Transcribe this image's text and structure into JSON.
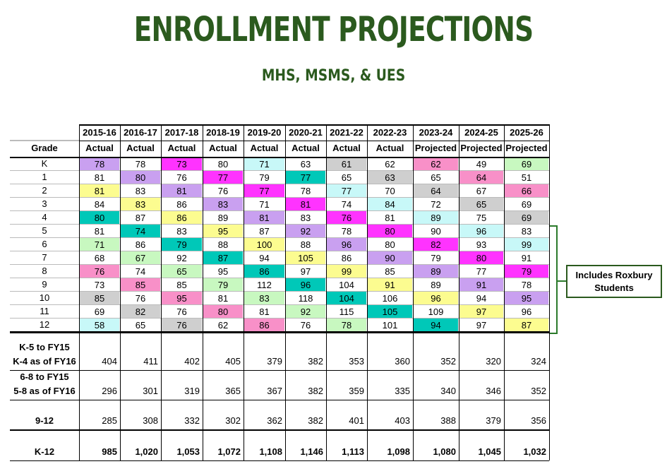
{
  "title": "ENROLLMENT PROJECTIONS",
  "subtitle": "MHS, MSMS, & UES",
  "callout": "Includes Roxbury Students",
  "years": [
    "2015-16",
    "2016-17",
    "2017-18",
    "2018-19",
    "2019-20",
    "2020-21",
    "2021-22",
    "2022-23",
    "2023-24",
    "2024-25",
    "2025-26"
  ],
  "types": [
    "Actual",
    "Actual",
    "Actual",
    "Actual",
    "Actual",
    "Actual",
    "Actual",
    "Actual",
    "Projected",
    "Projected",
    "Projected"
  ],
  "grade_header": "Grade",
  "colors": {
    "purple": "#c9a0f0",
    "magenta": "#ff33ff",
    "gray": "#cfcfcf",
    "cyan": "#c8f8f8",
    "teal": "#00c8b8",
    "green": "#c8f8c0",
    "yellow": "#fcfc90",
    "pink": "#f890c8",
    "white": "#ffffff",
    "title": "#2b5a1e"
  },
  "rows": [
    {
      "grade": "K",
      "values": [
        "78",
        "78",
        "73",
        "80",
        "71",
        "63",
        "61",
        "62",
        "62",
        "49",
        "69"
      ],
      "colors": [
        "purple",
        "white",
        "magenta",
        "white",
        "cyan",
        "white",
        "gray",
        "white",
        "pink",
        "white",
        "green"
      ]
    },
    {
      "grade": "1",
      "values": [
        "81",
        "80",
        "76",
        "77",
        "79",
        "77",
        "65",
        "63",
        "65",
        "64",
        "51"
      ],
      "colors": [
        "white",
        "purple",
        "white",
        "magenta",
        "white",
        "teal",
        "white",
        "gray",
        "white",
        "pink",
        "white"
      ]
    },
    {
      "grade": "2",
      "values": [
        "81",
        "83",
        "81",
        "76",
        "77",
        "78",
        "77",
        "70",
        "64",
        "67",
        "66"
      ],
      "colors": [
        "yellow",
        "white",
        "purple",
        "white",
        "magenta",
        "white",
        "cyan",
        "white",
        "gray",
        "white",
        "pink"
      ]
    },
    {
      "grade": "3",
      "values": [
        "84",
        "83",
        "86",
        "83",
        "71",
        "81",
        "74",
        "84",
        "72",
        "65",
        "69"
      ],
      "colors": [
        "white",
        "yellow",
        "white",
        "purple",
        "white",
        "magenta",
        "white",
        "cyan",
        "white",
        "gray",
        "white"
      ]
    },
    {
      "grade": "4",
      "values": [
        "80",
        "87",
        "86",
        "89",
        "81",
        "83",
        "76",
        "81",
        "89",
        "75",
        "69"
      ],
      "colors": [
        "teal",
        "white",
        "yellow",
        "white",
        "purple",
        "white",
        "magenta",
        "white",
        "cyan",
        "white",
        "gray"
      ]
    },
    {
      "grade": "5",
      "values": [
        "81",
        "74",
        "83",
        "95",
        "87",
        "92",
        "78",
        "80",
        "90",
        "96",
        "83"
      ],
      "colors": [
        "white",
        "teal",
        "white",
        "yellow",
        "white",
        "purple",
        "white",
        "magenta",
        "white",
        "cyan",
        "white"
      ]
    },
    {
      "grade": "6",
      "values": [
        "71",
        "86",
        "79",
        "88",
        "100",
        "88",
        "96",
        "80",
        "82",
        "93",
        "99"
      ],
      "colors": [
        "green",
        "white",
        "teal",
        "white",
        "yellow",
        "white",
        "purple",
        "white",
        "magenta",
        "white",
        "cyan"
      ]
    },
    {
      "grade": "7",
      "values": [
        "68",
        "67",
        "92",
        "87",
        "94",
        "105",
        "86",
        "90",
        "79",
        "80",
        "91"
      ],
      "colors": [
        "white",
        "green",
        "white",
        "teal",
        "white",
        "yellow",
        "white",
        "purple",
        "white",
        "magenta",
        "white"
      ]
    },
    {
      "grade": "8",
      "values": [
        "76",
        "74",
        "65",
        "95",
        "86",
        "97",
        "99",
        "85",
        "89",
        "77",
        "79"
      ],
      "colors": [
        "pink",
        "white",
        "green",
        "white",
        "teal",
        "white",
        "yellow",
        "white",
        "purple",
        "white",
        "magenta"
      ]
    },
    {
      "grade": "9",
      "values": [
        "73",
        "85",
        "85",
        "79",
        "112",
        "96",
        "104",
        "91",
        "89",
        "91",
        "78"
      ],
      "colors": [
        "white",
        "pink",
        "white",
        "green",
        "white",
        "teal",
        "white",
        "yellow",
        "white",
        "purple",
        "white"
      ]
    },
    {
      "grade": "10",
      "values": [
        "85",
        "76",
        "95",
        "81",
        "83",
        "118",
        "104",
        "106",
        "96",
        "94",
        "95"
      ],
      "colors": [
        "gray",
        "white",
        "pink",
        "white",
        "green",
        "white",
        "teal",
        "white",
        "yellow",
        "white",
        "purple"
      ]
    },
    {
      "grade": "11",
      "values": [
        "69",
        "82",
        "76",
        "80",
        "81",
        "92",
        "115",
        "105",
        "109",
        "97",
        "96"
      ],
      "colors": [
        "white",
        "gray",
        "white",
        "pink",
        "white",
        "green",
        "white",
        "teal",
        "white",
        "yellow",
        "white"
      ]
    },
    {
      "grade": "12",
      "values": [
        "58",
        "65",
        "76",
        "62",
        "86",
        "76",
        "78",
        "101",
        "94",
        "97",
        "87"
      ],
      "colors": [
        "cyan",
        "white",
        "gray",
        "white",
        "pink",
        "white",
        "green",
        "white",
        "teal",
        "white",
        "yellow"
      ]
    }
  ],
  "summary": [
    {
      "label1": "K-5 to FY15",
      "label2": "K-4 as of FY16",
      "values": [
        "404",
        "411",
        "402",
        "405",
        "379",
        "382",
        "353",
        "360",
        "352",
        "320",
        "324"
      ]
    },
    {
      "label1": "6-8 to FY15",
      "label2": "5-8 as of FY16",
      "values": [
        "296",
        "301",
        "319",
        "365",
        "367",
        "382",
        "359",
        "335",
        "340",
        "346",
        "352"
      ]
    },
    {
      "label1": "",
      "label2": "9-12",
      "values": [
        "285",
        "308",
        "332",
        "302",
        "362",
        "382",
        "401",
        "403",
        "388",
        "379",
        "356"
      ]
    },
    {
      "label1": "",
      "label2": "K-12",
      "values": [
        "985",
        "1,020",
        "1,053",
        "1,072",
        "1,108",
        "1,146",
        "1,113",
        "1,098",
        "1,080",
        "1,045",
        "1,032"
      ]
    }
  ]
}
